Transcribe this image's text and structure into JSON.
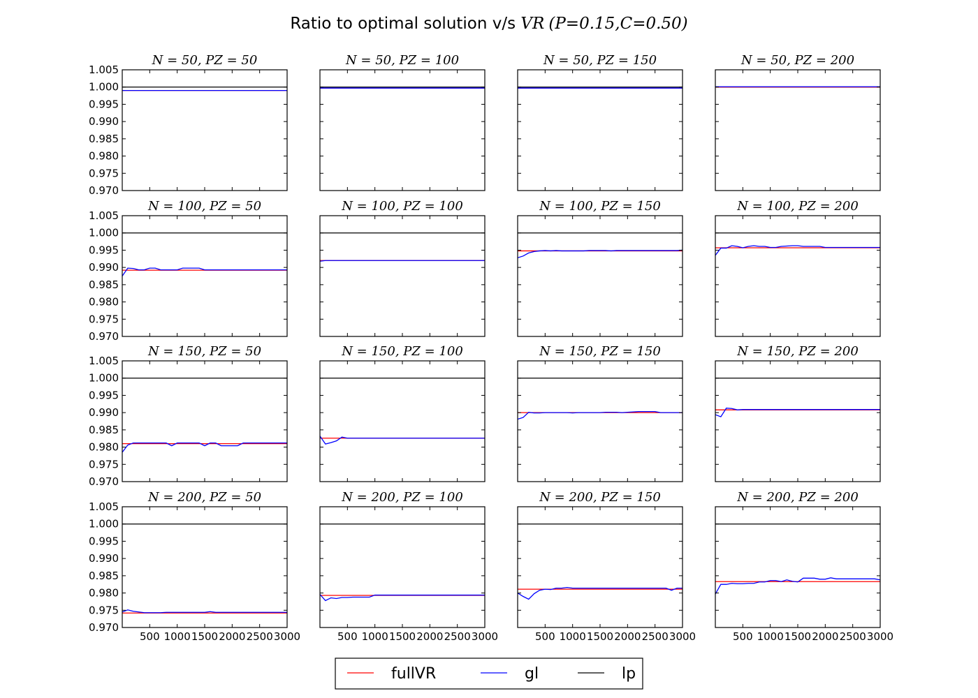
{
  "figure": {
    "title_prefix": "Ratio to optimal solution v/s ",
    "title_math": "VR",
    "title_paren": "(P=0.15,C=0.50)"
  },
  "legend": {
    "placement": "bottom-center",
    "entries": [
      {
        "label": "fullVR",
        "color": "#ff0000"
      },
      {
        "label": "gl",
        "color": "#0000ff"
      },
      {
        "label": "lp",
        "color": "#000000"
      }
    ]
  },
  "chart_data": {
    "type": "line",
    "xlim": [
      0,
      3000
    ],
    "ylim": [
      0.97,
      1.005
    ],
    "xticks": [
      500,
      1000,
      1500,
      2000,
      2500,
      3000
    ],
    "xtick_labels": [
      "500",
      "1000",
      "1500",
      "2000",
      "2500",
      "3000"
    ],
    "yticks": [
      0.97,
      0.975,
      0.98,
      0.985,
      0.99,
      0.995,
      1.0,
      1.005
    ],
    "ytick_labels": [
      "0.970",
      "0.975",
      "0.980",
      "0.985",
      "0.990",
      "0.995",
      "1.000",
      "1.005"
    ],
    "gl_x": [
      0,
      100,
      200,
      300,
      400,
      500,
      600,
      700,
      800,
      900,
      1000,
      1100,
      1200,
      1300,
      1400,
      1500,
      1600,
      1700,
      1800,
      1900,
      2000,
      2100,
      2200,
      2300,
      2400,
      2500,
      2600,
      2700,
      2800,
      2900,
      3000
    ],
    "panels": [
      {
        "title": "N = 50, PZ = 50",
        "fullVR": 0.999,
        "lp": 1.0,
        "gl": [
          0.999,
          0.999,
          0.999,
          0.999,
          0.999,
          0.999,
          0.999,
          0.999,
          0.999,
          0.999,
          0.999,
          0.999,
          0.999,
          0.999,
          0.999,
          0.999,
          0.999,
          0.999,
          0.999,
          0.999,
          0.999,
          0.999,
          0.999,
          0.999,
          0.999,
          0.999,
          0.999,
          0.999,
          0.999,
          0.999,
          0.999
        ]
      },
      {
        "title": "N = 50, PZ = 100",
        "fullVR": 0.9997,
        "lp": 1.0,
        "gl": [
          0.9997,
          0.9997,
          0.9997,
          0.9997,
          0.9997,
          0.9997,
          0.9997,
          0.9997,
          0.9997,
          0.9997,
          0.9997,
          0.9997,
          0.9997,
          0.9997,
          0.9997,
          0.9997,
          0.9997,
          0.9997,
          0.9997,
          0.9997,
          0.9997,
          0.9997,
          0.9997,
          0.9997,
          0.9997,
          0.9997,
          0.9997,
          0.9997,
          0.9997,
          0.9997,
          0.9997
        ]
      },
      {
        "title": "N = 50, PZ = 150",
        "fullVR": 0.9997,
        "lp": 1.0,
        "gl": [
          0.9997,
          0.9997,
          0.9997,
          0.9997,
          0.9997,
          0.9997,
          0.9997,
          0.9997,
          0.9997,
          0.9997,
          0.9997,
          0.9997,
          0.9997,
          0.9997,
          0.9997,
          0.9997,
          0.9997,
          0.9997,
          0.9997,
          0.9997,
          0.9997,
          0.9997,
          0.9997,
          0.9997,
          0.9997,
          0.9997,
          0.9997,
          0.9997,
          0.9997,
          0.9997,
          0.9997
        ]
      },
      {
        "title": "N = 50, PZ = 200",
        "fullVR": 1.0,
        "lp": 1.0,
        "gl": [
          1.0001,
          1.0001,
          1.0001,
          1.0001,
          1.0001,
          1.0001,
          1.0001,
          1.0001,
          1.0001,
          1.0001,
          1.0001,
          1.0001,
          1.0001,
          1.0001,
          1.0001,
          1.0001,
          1.0001,
          1.0001,
          1.0001,
          1.0001,
          1.0001,
          1.0001,
          1.0001,
          1.0001,
          1.0001,
          1.0001,
          1.0001,
          1.0001,
          1.0001,
          1.0001,
          1.0001
        ]
      },
      {
        "title": "N = 100, PZ = 50",
        "fullVR": 0.9892,
        "lp": 1.0,
        "gl": [
          0.9875,
          0.9898,
          0.9897,
          0.9893,
          0.9893,
          0.9898,
          0.9898,
          0.9893,
          0.9893,
          0.9893,
          0.9893,
          0.9898,
          0.9898,
          0.9898,
          0.9898,
          0.9893,
          0.9893,
          0.9893,
          0.9893,
          0.9893,
          0.9893,
          0.9893,
          0.9893,
          0.9893,
          0.9893,
          0.9893,
          0.9893,
          0.9893,
          0.9893,
          0.9893,
          0.9893
        ]
      },
      {
        "title": "N = 100, PZ = 100",
        "fullVR": 0.992,
        "lp": 1.0,
        "gl": [
          0.9918,
          0.992,
          0.992,
          0.992,
          0.992,
          0.992,
          0.992,
          0.992,
          0.992,
          0.992,
          0.992,
          0.992,
          0.992,
          0.992,
          0.992,
          0.992,
          0.992,
          0.992,
          0.992,
          0.992,
          0.992,
          0.992,
          0.992,
          0.992,
          0.992,
          0.992,
          0.992,
          0.992,
          0.992,
          0.992,
          0.992
        ]
      },
      {
        "title": "N = 100, PZ = 150",
        "fullVR": 0.9948,
        "lp": 1.0,
        "gl": [
          0.9928,
          0.9933,
          0.9942,
          0.9946,
          0.9948,
          0.9949,
          0.9948,
          0.9949,
          0.9948,
          0.9948,
          0.9948,
          0.9948,
          0.9948,
          0.9949,
          0.9949,
          0.9949,
          0.9949,
          0.9948,
          0.9949,
          0.9949,
          0.9949,
          0.9949,
          0.9949,
          0.9949,
          0.9949,
          0.9949,
          0.9949,
          0.9949,
          0.9949,
          0.9949,
          0.995
        ]
      },
      {
        "title": "N = 100, PZ = 200",
        "fullVR": 0.9957,
        "lp": 1.0,
        "gl": [
          0.9935,
          0.9956,
          0.9956,
          0.9963,
          0.9961,
          0.9957,
          0.9961,
          0.9963,
          0.9961,
          0.9961,
          0.9958,
          0.9958,
          0.9961,
          0.9962,
          0.9963,
          0.9963,
          0.9961,
          0.9961,
          0.9961,
          0.9961,
          0.9958,
          0.9958,
          0.9958,
          0.9958,
          0.9958,
          0.9958,
          0.9958,
          0.9958,
          0.9958,
          0.9958,
          0.9958
        ]
      },
      {
        "title": "N = 150, PZ = 50",
        "fullVR": 0.981,
        "lp": 1.0,
        "gl": [
          0.9785,
          0.9806,
          0.9812,
          0.9812,
          0.9812,
          0.9812,
          0.9812,
          0.9812,
          0.9812,
          0.9804,
          0.9812,
          0.9812,
          0.9812,
          0.9812,
          0.9812,
          0.9804,
          0.9812,
          0.9812,
          0.9804,
          0.9804,
          0.9804,
          0.9804,
          0.9812,
          0.9812,
          0.9812,
          0.9812,
          0.9812,
          0.9812,
          0.9812,
          0.9812,
          0.9812
        ]
      },
      {
        "title": "N = 150, PZ = 100",
        "fullVR": 0.9826,
        "lp": 1.0,
        "gl": [
          0.9832,
          0.9809,
          0.9813,
          0.9818,
          0.9829,
          0.9826,
          0.9826,
          0.9826,
          0.9826,
          0.9826,
          0.9826,
          0.9826,
          0.9826,
          0.9826,
          0.9826,
          0.9826,
          0.9826,
          0.9826,
          0.9826,
          0.9826,
          0.9826,
          0.9826,
          0.9826,
          0.9826,
          0.9826,
          0.9826,
          0.9826,
          0.9826,
          0.9826,
          0.9826,
          0.9826
        ]
      },
      {
        "title": "N = 150, PZ = 150",
        "fullVR": 0.99,
        "lp": 1.0,
        "gl": [
          0.9881,
          0.9886,
          0.9901,
          0.9899,
          0.9899,
          0.99,
          0.99,
          0.99,
          0.99,
          0.99,
          0.9899,
          0.99,
          0.99,
          0.99,
          0.99,
          0.99,
          0.9901,
          0.9901,
          0.9901,
          0.99,
          0.9901,
          0.9902,
          0.9903,
          0.9903,
          0.9903,
          0.9903,
          0.99,
          0.99,
          0.99,
          0.99,
          0.99
        ]
      },
      {
        "title": "N = 150, PZ = 200",
        "fullVR": 0.9908,
        "lp": 1.0,
        "gl": [
          0.9894,
          0.9888,
          0.9913,
          0.9912,
          0.9908,
          0.9909,
          0.9909,
          0.9909,
          0.9909,
          0.9909,
          0.9909,
          0.9909,
          0.9909,
          0.9909,
          0.9909,
          0.9909,
          0.9909,
          0.9909,
          0.9909,
          0.9909,
          0.9909,
          0.9909,
          0.9909,
          0.9909,
          0.9909,
          0.9909,
          0.9909,
          0.9909,
          0.9909,
          0.9909,
          0.9909
        ]
      },
      {
        "title": "N = 200, PZ = 50",
        "fullVR": 0.9742,
        "lp": 1.0,
        "gl": [
          0.9745,
          0.9751,
          0.9747,
          0.9745,
          0.9743,
          0.9743,
          0.9743,
          0.9743,
          0.9744,
          0.9744,
          0.9744,
          0.9744,
          0.9744,
          0.9744,
          0.9744,
          0.9744,
          0.9746,
          0.9744,
          0.9744,
          0.9744,
          0.9744,
          0.9744,
          0.9744,
          0.9744,
          0.9744,
          0.9744,
          0.9744,
          0.9744,
          0.9744,
          0.9744,
          0.9744
        ]
      },
      {
        "title": "N = 200, PZ = 100",
        "fullVR": 0.9793,
        "lp": 1.0,
        "gl": [
          0.9796,
          0.9778,
          0.9786,
          0.9784,
          0.9787,
          0.9787,
          0.9788,
          0.9788,
          0.9788,
          0.9788,
          0.9794,
          0.9794,
          0.9794,
          0.9794,
          0.9794,
          0.9794,
          0.9794,
          0.9794,
          0.9794,
          0.9794,
          0.9794,
          0.9794,
          0.9794,
          0.9794,
          0.9794,
          0.9794,
          0.9794,
          0.9794,
          0.9794,
          0.9794,
          0.9794
        ]
      },
      {
        "title": "N = 200, PZ = 150",
        "fullVR": 0.9811,
        "lp": 1.0,
        "gl": [
          0.98,
          0.979,
          0.9782,
          0.9798,
          0.9808,
          0.9811,
          0.981,
          0.9814,
          0.9814,
          0.9816,
          0.9814,
          0.9814,
          0.9814,
          0.9814,
          0.9814,
          0.9814,
          0.9814,
          0.9814,
          0.9814,
          0.9814,
          0.9814,
          0.9814,
          0.9814,
          0.9814,
          0.9814,
          0.9814,
          0.9814,
          0.9814,
          0.9808,
          0.9814,
          0.9814
        ]
      },
      {
        "title": "N = 200, PZ = 200",
        "fullVR": 0.9833,
        "lp": 1.0,
        "gl": [
          0.9797,
          0.9825,
          0.9825,
          0.9828,
          0.9827,
          0.9827,
          0.9828,
          0.9828,
          0.9832,
          0.9832,
          0.9836,
          0.9836,
          0.9833,
          0.9838,
          0.9834,
          0.9832,
          0.9843,
          0.9843,
          0.9843,
          0.984,
          0.984,
          0.9844,
          0.9841,
          0.9841,
          0.9841,
          0.9841,
          0.9841,
          0.9841,
          0.9841,
          0.9841,
          0.9838
        ]
      }
    ]
  }
}
